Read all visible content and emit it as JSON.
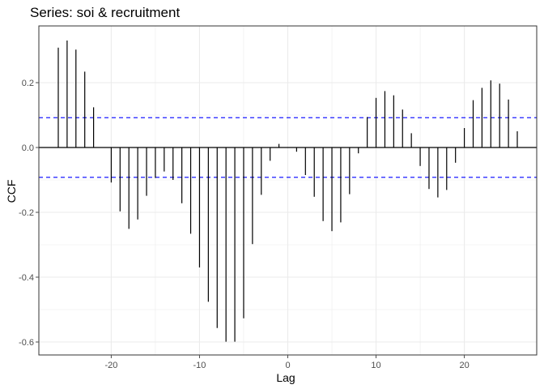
{
  "chart_data": {
    "type": "bar",
    "title": "Series: soi & recruitment",
    "xlabel": "Lag",
    "ylabel": "CCF",
    "xlim": [
      -28.2,
      28.2
    ],
    "ylim": [
      -0.64,
      0.375
    ],
    "x_ticks": [
      -20,
      -10,
      0,
      10,
      20
    ],
    "x_tick_labels": [
      "-20",
      "-10",
      "0",
      "10",
      "20"
    ],
    "y_ticks": [
      -0.6,
      -0.4,
      -0.2,
      0.0,
      0.2
    ],
    "y_tick_labels": [
      "-0.6",
      "-0.4",
      "-0.2",
      "0.0",
      "0.2"
    ],
    "confidence_bound": 0.092,
    "grid": true,
    "lags": [
      -26,
      -25,
      -24,
      -23,
      -22,
      -21,
      -20,
      -19,
      -18,
      -17,
      -16,
      -15,
      -14,
      -13,
      -12,
      -11,
      -10,
      -9,
      -8,
      -7,
      -6,
      -5,
      -4,
      -3,
      -2,
      -1,
      0,
      1,
      2,
      3,
      4,
      5,
      6,
      7,
      8,
      9,
      10,
      11,
      12,
      13,
      14,
      15,
      16,
      17,
      18,
      19,
      20,
      21,
      22,
      23,
      24,
      25,
      26
    ],
    "values": [
      0.308,
      0.33,
      0.302,
      0.234,
      0.124,
      0.0,
      -0.108,
      -0.197,
      -0.251,
      -0.222,
      -0.149,
      -0.094,
      -0.074,
      -0.1,
      -0.172,
      -0.266,
      -0.37,
      -0.476,
      -0.557,
      -0.599,
      -0.599,
      -0.527,
      -0.298,
      -0.146,
      -0.041,
      0.011,
      0.0,
      -0.013,
      -0.085,
      -0.152,
      -0.227,
      -0.258,
      -0.231,
      -0.144,
      -0.018,
      0.094,
      0.153,
      0.174,
      0.161,
      0.117,
      0.044,
      -0.057,
      -0.128,
      -0.154,
      -0.131,
      -0.047,
      0.06,
      0.146,
      0.184,
      0.207,
      0.197,
      0.148,
      0.05
    ],
    "colors": {
      "bars": "#000000",
      "bounds": "#0000ff",
      "panel_border": "#333333",
      "grid": "#ebebeb",
      "ticks": "#4d4d4d"
    }
  }
}
